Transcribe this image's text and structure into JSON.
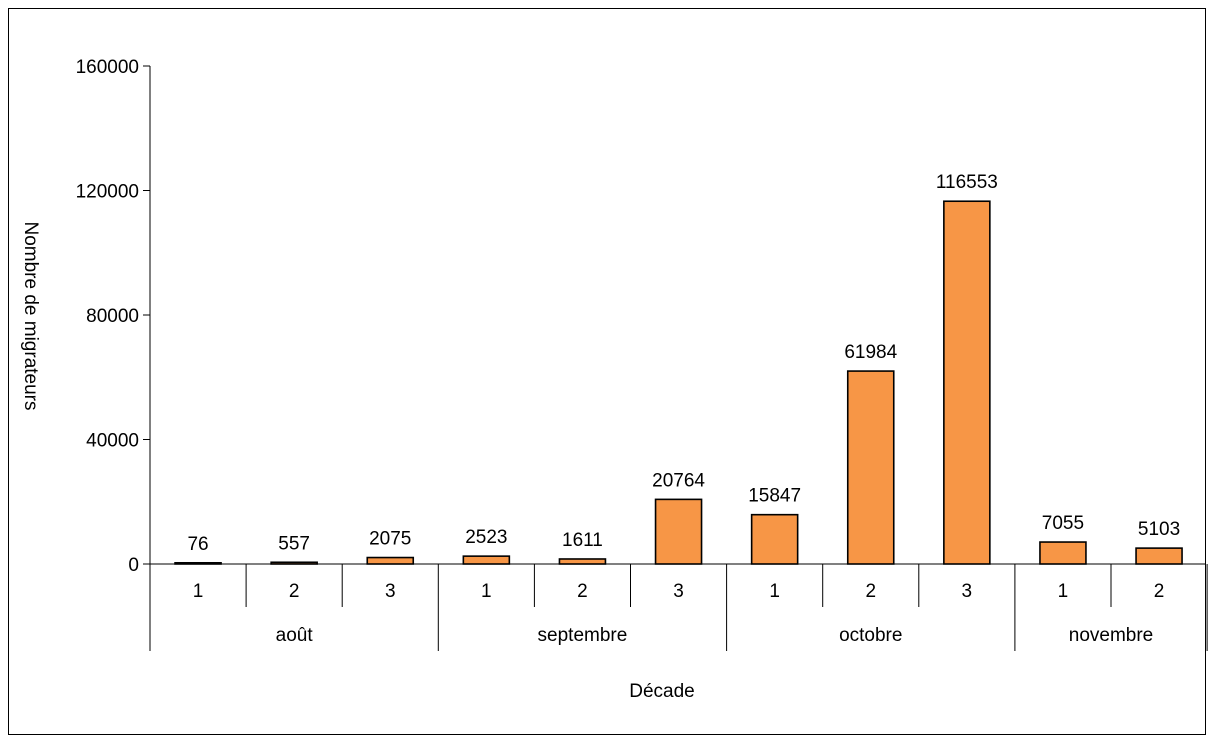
{
  "chart_data": {
    "type": "bar",
    "title": "",
    "xlabel": "Décade",
    "ylabel": "Nombre de migrateurs",
    "ylim": [
      0,
      160000
    ],
    "yticks": [
      "0",
      "40000",
      "80000",
      "120000",
      "160000"
    ],
    "ytick_values": [
      0,
      40000,
      80000,
      120000,
      160000
    ],
    "grid": false,
    "legend": "none",
    "groups": [
      {
        "label": "août",
        "categories": [
          "1",
          "2",
          "3"
        ]
      },
      {
        "label": "septembre",
        "categories": [
          "1",
          "2",
          "3"
        ]
      },
      {
        "label": "octobre",
        "categories": [
          "1",
          "2",
          "3"
        ]
      },
      {
        "label": "novembre",
        "categories": [
          "1",
          "2"
        ]
      }
    ],
    "values": [
      76,
      557,
      2075,
      2523,
      1611,
      20764,
      15847,
      61984,
      116553,
      7055,
      5103
    ],
    "data_labels": [
      "76",
      "557",
      "2075",
      "2523",
      "1611",
      "20764",
      "15847",
      "61984",
      "116553",
      "7055",
      "5103"
    ],
    "colors": {
      "bar_fill": "#F79646",
      "bar_stroke": "#000000",
      "axis": "#000000"
    }
  }
}
